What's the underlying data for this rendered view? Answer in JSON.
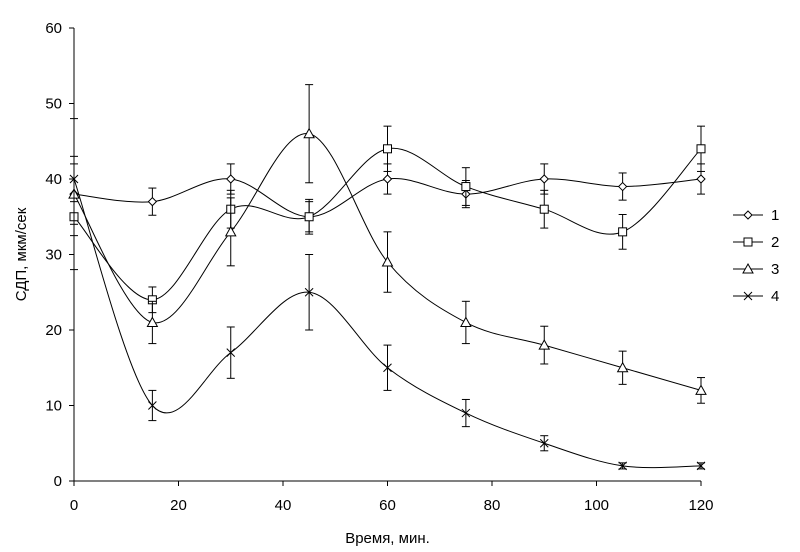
{
  "chart_data": {
    "type": "line",
    "xlabel": "Время, мин.",
    "ylabel": "СДП, мкм/сек",
    "xlim": [
      0,
      120
    ],
    "ylim": [
      0,
      60
    ],
    "xticks": [
      0,
      20,
      40,
      60,
      80,
      100,
      120
    ],
    "yticks": [
      0,
      10,
      20,
      30,
      40,
      50,
      60
    ],
    "grid": false,
    "legend_position": "right",
    "x": [
      0,
      15,
      30,
      45,
      60,
      75,
      90,
      105,
      120
    ],
    "series": [
      {
        "name": "1",
        "marker": "diamond",
        "values": [
          38,
          37,
          40,
          35,
          40,
          38,
          40,
          39,
          40
        ],
        "errors": [
          4,
          1.8,
          2,
          2.3,
          2,
          1.8,
          2,
          1.8,
          2
        ]
      },
      {
        "name": "2",
        "marker": "square",
        "values": [
          35,
          24,
          36,
          35,
          44,
          39,
          36,
          33,
          44
        ],
        "errors": [
          2.5,
          1.7,
          2.5,
          2,
          3,
          2.5,
          2.5,
          2.3,
          3
        ]
      },
      {
        "name": "3",
        "marker": "triangle",
        "values": [
          38,
          21,
          33,
          46,
          29,
          21,
          18,
          15,
          12
        ],
        "errors": [
          10,
          2.8,
          4.5,
          6.5,
          4,
          2.8,
          2.5,
          2.2,
          1.7
        ]
      },
      {
        "name": "4",
        "marker": "x",
        "values": [
          40,
          10,
          17,
          25,
          15,
          9,
          5,
          2,
          2
        ],
        "errors": [
          3,
          2,
          3.4,
          5,
          3,
          1.8,
          1,
          0.4,
          0.4
        ]
      }
    ]
  }
}
